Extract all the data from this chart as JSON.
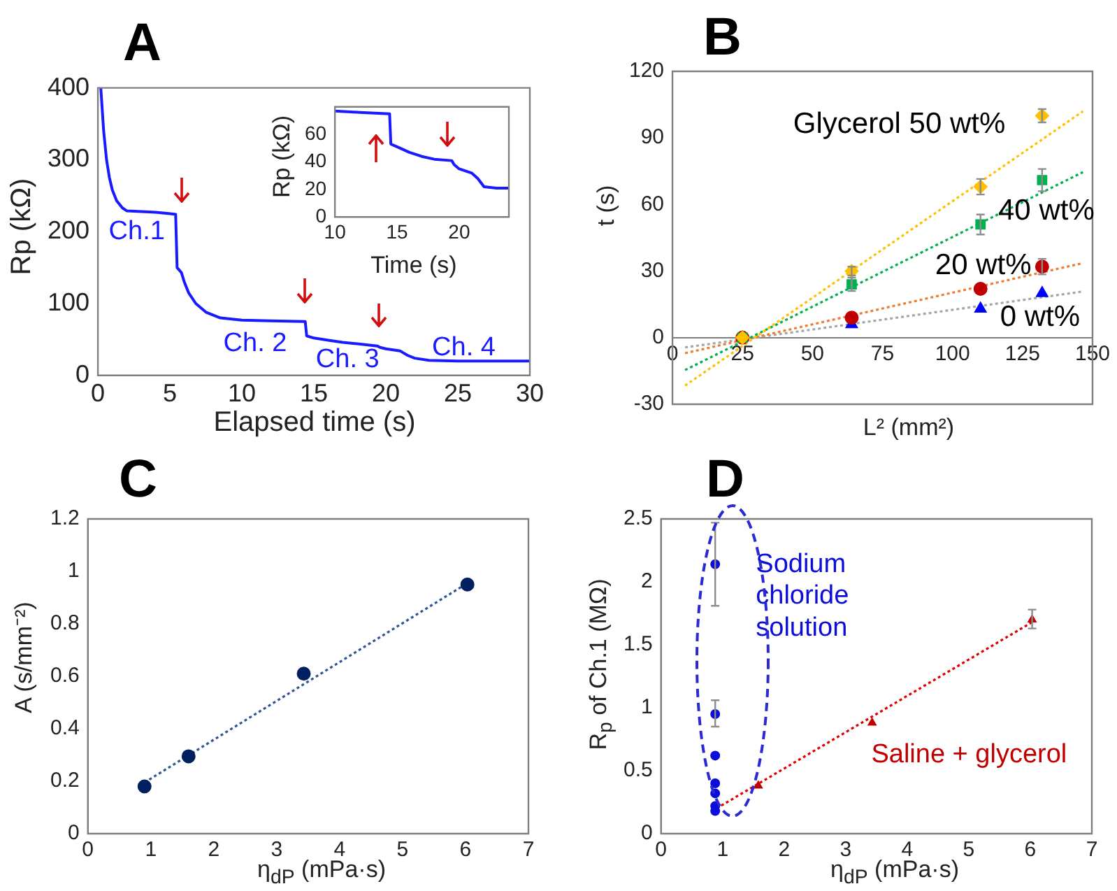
{
  "chart_data": [
    {
      "type": "line",
      "title": "A",
      "xlabel": "Elapsed time (s)",
      "ylabel": "Rp (kΩ)",
      "xlim": [
        0,
        30
      ],
      "xticks": [
        0,
        5,
        10,
        15,
        20,
        25,
        30
      ],
      "ylim": [
        0,
        400
      ],
      "yticks": [
        0,
        100,
        200,
        300,
        400
      ],
      "marker": "none",
      "line_style": "solid",
      "series": [
        {
          "color": "#1a1aff",
          "x": [
            0.2,
            0.4,
            0.6,
            0.8,
            1,
            1.3,
            1.7,
            2,
            3,
            4,
            5,
            5.4,
            5.5,
            5.8,
            6,
            6.3,
            6.8,
            7.5,
            8.5,
            10,
            12,
            14.4,
            14.5,
            15,
            16,
            17,
            18,
            19.4,
            19.6,
            20,
            21,
            21.5,
            22,
            23,
            25,
            30
          ],
          "values": [
            400,
            340,
            300,
            275,
            258,
            243,
            233,
            229,
            228,
            227,
            225,
            224,
            150,
            143,
            130,
            115,
            100,
            88,
            80,
            77,
            76,
            75,
            55,
            52,
            49,
            46,
            44,
            41,
            39,
            37,
            34,
            28,
            24,
            21,
            20,
            20
          ]
        }
      ],
      "annotations": [
        "Ch.1",
        "Ch. 2",
        "Ch. 3",
        "Ch. 4"
      ]
    },
    {
      "type": "line",
      "xlabel": "Time (s)",
      "ylabel": "Rp (kΩ)",
      "xlim": [
        10,
        24
      ],
      "xticks": [
        10,
        15,
        20
      ],
      "ylim": [
        0,
        80
      ],
      "yticks": [
        0,
        20,
        40,
        60
      ],
      "marker": "none",
      "line_style": "solid",
      "series": [
        {
          "color": "#1a1aff",
          "x": [
            10,
            12,
            14.4,
            14.5,
            15,
            16,
            17,
            18,
            19.4,
            19.6,
            20,
            21,
            21.5,
            22,
            23,
            24
          ],
          "values": [
            77,
            76,
            75,
            53,
            51,
            47,
            44,
            42,
            41,
            38,
            35,
            32,
            28,
            22,
            21,
            21
          ]
        }
      ]
    },
    {
      "type": "scatter",
      "title": "B",
      "xlabel": "L² (mm²)",
      "ylabel": "t (s)",
      "xlim": [
        0,
        150
      ],
      "xticks": [
        0,
        25,
        50,
        75,
        100,
        125,
        150
      ],
      "ylim": [
        -30,
        120
      ],
      "yticks": [
        -30,
        0,
        30,
        60,
        90,
        120
      ],
      "series": [
        {
          "name": "Glycerol 50 wt%",
          "color": "#ffc000",
          "marker": "diamond",
          "x": [
            25,
            64,
            110,
            132
          ],
          "values": [
            0,
            30,
            68,
            100
          ],
          "errors": [
            null,
            2,
            3.5,
            3
          ]
        },
        {
          "name": "40 wt%",
          "color": "#00b050",
          "marker": "square",
          "x": [
            25,
            64,
            110,
            132
          ],
          "values": [
            0,
            24,
            51,
            71
          ],
          "errors": [
            null,
            3,
            4.5,
            5
          ]
        },
        {
          "name": "20 wt%",
          "color": "#c00000",
          "marker": "circle",
          "x": [
            25,
            64,
            110,
            132
          ],
          "values": [
            0,
            9,
            22,
            32
          ],
          "errors": [
            null,
            null,
            null,
            3.5
          ]
        },
        {
          "name": "0 wt%",
          "color": "#0000ff",
          "marker": "triangle",
          "x": [
            25,
            64,
            110,
            132
          ],
          "values": [
            0,
            6,
            13,
            20
          ]
        },
        {
          "type": "line",
          "color": "#ffc000",
          "marker": "none",
          "line_style": "dotted",
          "x": [
            4.5,
            146.6
          ],
          "values": [
            -21.6,
            102
          ]
        },
        {
          "type": "line",
          "color": "#00b050",
          "marker": "none",
          "line_style": "dotted",
          "x": [
            4.5,
            146.6
          ],
          "values": [
            -14.6,
            74.6
          ]
        },
        {
          "type": "line",
          "color": "#ed7d31",
          "marker": "none",
          "line_style": "dotted",
          "x": [
            4.5,
            146.6
          ],
          "values": [
            -7,
            33.6
          ]
        },
        {
          "type": "line",
          "color": "#a6a6a6",
          "marker": "none",
          "line_style": "dotted",
          "x": [
            4.5,
            146.6
          ],
          "values": [
            -4.4,
            20.8
          ]
        }
      ]
    },
    {
      "type": "scatter",
      "title": "C",
      "xlabel": "η$_{dP}$ (mPa·s)",
      "ylabel": "A (s/mm⁻²)",
      "xlim": [
        0,
        7
      ],
      "xticks": [
        0,
        1,
        2,
        3,
        4,
        5,
        6,
        7
      ],
      "ylim": [
        0,
        1.2
      ],
      "yticks": [
        0,
        0.2,
        0.4,
        0.6,
        0.8,
        1,
        1.2
      ],
      "series": [
        {
          "color": "#002060",
          "marker": "circle",
          "x": [
            0.9,
            1.6,
            3.43,
            6.03
          ],
          "values": [
            0.18,
            0.295,
            0.61,
            0.95
          ]
        },
        {
          "type": "line",
          "color": "#2f5597",
          "marker": "none",
          "line_style": "dotted",
          "x": [
            0.9,
            6.03
          ],
          "values": [
            0.195,
            0.955
          ]
        }
      ]
    },
    {
      "type": "scatter",
      "title": "D",
      "xlabel": "η$_{dP}$ (mPa·s)",
      "ylabel": "R$_{p}$ of Ch.1 (MΩ)",
      "xlim": [
        0,
        7
      ],
      "xticks": [
        0,
        1,
        2,
        3,
        4,
        5,
        6,
        7
      ],
      "ylim": [
        0,
        2.5
      ],
      "yticks": [
        0,
        0.5,
        1,
        1.5,
        2,
        2.5
      ],
      "series": [
        {
          "name": "Sodium chloride solution",
          "color": "#0d0dd9",
          "marker": "circle",
          "x": [
            0.88,
            0.88,
            0.88,
            0.88,
            0.88,
            0.88,
            0.88
          ],
          "values": [
            2.14,
            0.95,
            0.62,
            0.4,
            0.32,
            0.22,
            0.18
          ],
          "errors": [
            [
              1.81,
              2.47
            ],
            [
              0.85,
              1.06
            ],
            null,
            null,
            null,
            null,
            null
          ]
        },
        {
          "name": "Saline + glycerol",
          "color": "#c00000",
          "marker": "triangle",
          "x": [
            1.58,
            3.43,
            6.03
          ],
          "values": [
            0.38,
            0.88,
            1.7
          ],
          "errors": [
            null,
            null,
            [
              1.63,
              1.78
            ]
          ]
        },
        {
          "type": "line",
          "color": "#e00000",
          "marker": "none",
          "line_style": "dotted",
          "x": [
            0.9,
            6.03
          ],
          "values": [
            0.2,
            1.68
          ]
        }
      ]
    }
  ]
}
